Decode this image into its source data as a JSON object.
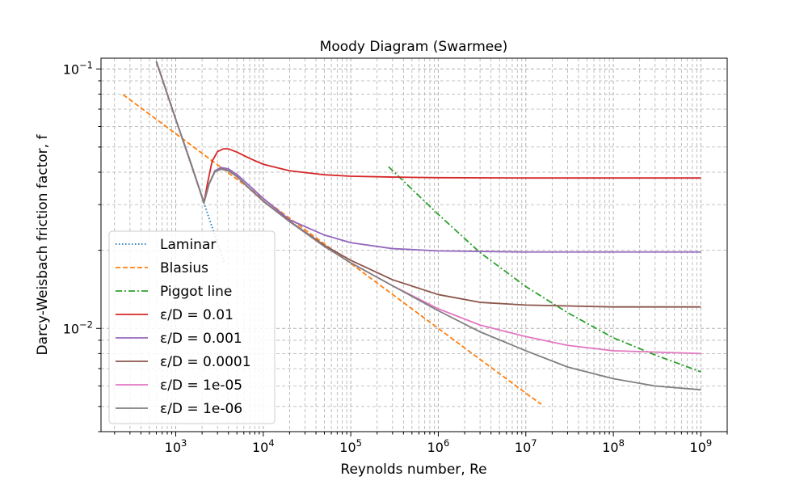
{
  "chart_data": {
    "type": "line",
    "title": "Moody Diagram (Swarmee)",
    "xlabel": "Reynolds number, Re",
    "ylabel": "Darcy-Weisbach friction factor, f",
    "xscale": "log",
    "yscale": "log",
    "xlim": [
      140,
      2000000000
    ],
    "ylim": [
      0.004,
      0.11
    ],
    "x_ticks": [
      {
        "value": 1000,
        "base": "10",
        "exp": "3"
      },
      {
        "value": 10000,
        "base": "10",
        "exp": "4"
      },
      {
        "value": 100000,
        "base": "10",
        "exp": "5"
      },
      {
        "value": 1000000,
        "base": "10",
        "exp": "6"
      },
      {
        "value": 10000000,
        "base": "10",
        "exp": "7"
      },
      {
        "value": 100000000,
        "base": "10",
        "exp": "8"
      },
      {
        "value": 1000000000,
        "base": "10",
        "exp": "9"
      }
    ],
    "y_ticks": [
      {
        "value": 0.1,
        "base": "10",
        "exp": "−1"
      },
      {
        "value": 0.01,
        "base": "10",
        "exp": "−2"
      }
    ],
    "grid": true,
    "legend_position": "lower-left",
    "series": [
      {
        "name": "Laminar",
        "color": "#1f77b4",
        "style": "dotted",
        "x": [
          600,
          800,
          1000,
          1300,
          1600,
          2000,
          2300,
          2600,
          3000,
          3600
        ],
        "y": [
          0.1067,
          0.08,
          0.064,
          0.0492,
          0.04,
          0.032,
          0.0278,
          0.0246,
          0.0213,
          0.0178
        ]
      },
      {
        "name": "Blasius",
        "color": "#ff7f0e",
        "style": "dashed",
        "x": [
          250,
          1000,
          10000,
          100000,
          1000000,
          10000000,
          15000000
        ],
        "y": [
          0.0796,
          0.0563,
          0.0316,
          0.0178,
          0.01,
          0.00563,
          0.0051
        ]
      },
      {
        "name": "Piggot line",
        "color": "#2ca02c",
        "style": "dashdot",
        "x": [
          270000,
          1000000,
          3000000,
          10000000,
          30000000,
          100000000,
          300000000,
          1000000000
        ],
        "y": [
          0.042,
          0.0275,
          0.0196,
          0.0145,
          0.0115,
          0.0092,
          0.0079,
          0.0068
        ]
      },
      {
        "name": "ε/D = 0.01",
        "color": "#d62728",
        "style": "solid",
        "x": [
          600,
          1000,
          1500,
          2100,
          2300,
          2600,
          3000,
          3500,
          4000,
          5000,
          7000,
          10000,
          20000,
          50000,
          100000,
          300000,
          1000000,
          10000000,
          100000000,
          1000000000
        ],
        "y": [
          0.107,
          0.064,
          0.043,
          0.0305,
          0.036,
          0.044,
          0.048,
          0.0492,
          0.0492,
          0.0478,
          0.0452,
          0.0429,
          0.0405,
          0.0391,
          0.0386,
          0.0383,
          0.0381,
          0.038,
          0.038,
          0.038
        ]
      },
      {
        "name": "ε/D = 0.001",
        "color": "#9467bd",
        "style": "solid",
        "x": [
          600,
          1000,
          1500,
          2100,
          2400,
          2800,
          3300,
          4000,
          5000,
          7000,
          10000,
          20000,
          50000,
          100000,
          300000,
          1000000,
          10000000,
          100000000,
          1000000000
        ],
        "y": [
          0.107,
          0.064,
          0.043,
          0.0305,
          0.036,
          0.0405,
          0.0417,
          0.0412,
          0.0392,
          0.0354,
          0.0317,
          0.0262,
          0.0229,
          0.0214,
          0.0203,
          0.0199,
          0.0197,
          0.0197,
          0.0197
        ]
      },
      {
        "name": "ε/D = 0.0001",
        "color": "#8c564b",
        "style": "solid",
        "x": [
          600,
          1000,
          1500,
          2100,
          2400,
          2800,
          3300,
          4000,
          5000,
          7000,
          10000,
          20000,
          50000,
          100000,
          300000,
          1000000,
          3000000,
          10000000,
          100000000,
          1000000000
        ],
        "y": [
          0.107,
          0.064,
          0.043,
          0.0305,
          0.036,
          0.0402,
          0.0412,
          0.0406,
          0.0385,
          0.0346,
          0.031,
          0.0259,
          0.0209,
          0.0183,
          0.0154,
          0.0135,
          0.0126,
          0.0123,
          0.0121,
          0.0121
        ]
      },
      {
        "name": "ε/D = 1e-05",
        "color": "#e377c2",
        "style": "solid",
        "x": [
          600,
          1000,
          1500,
          2100,
          2400,
          2800,
          3300,
          4000,
          5000,
          7000,
          10000,
          20000,
          50000,
          100000,
          300000,
          1000000,
          3000000,
          10000000,
          30000000,
          100000000,
          1000000000
        ],
        "y": [
          0.107,
          0.064,
          0.043,
          0.0305,
          0.036,
          0.0402,
          0.0411,
          0.0405,
          0.0385,
          0.0345,
          0.0309,
          0.0258,
          0.0207,
          0.0179,
          0.0146,
          0.0119,
          0.0103,
          0.0093,
          0.0086,
          0.0082,
          0.008
        ]
      },
      {
        "name": "ε/D = 1e-06",
        "color": "#7f7f7f",
        "style": "solid",
        "x": [
          600,
          1000,
          1500,
          2100,
          2400,
          2800,
          3300,
          4000,
          5000,
          7000,
          10000,
          20000,
          50000,
          100000,
          300000,
          1000000,
          3000000,
          10000000,
          30000000,
          100000000,
          300000000,
          1000000000
        ],
        "y": [
          0.107,
          0.064,
          0.043,
          0.0305,
          0.036,
          0.0402,
          0.0411,
          0.0405,
          0.0385,
          0.0345,
          0.0309,
          0.0258,
          0.0207,
          0.0179,
          0.0146,
          0.0117,
          0.0097,
          0.0082,
          0.0071,
          0.0064,
          0.006,
          0.0058
        ]
      }
    ]
  }
}
